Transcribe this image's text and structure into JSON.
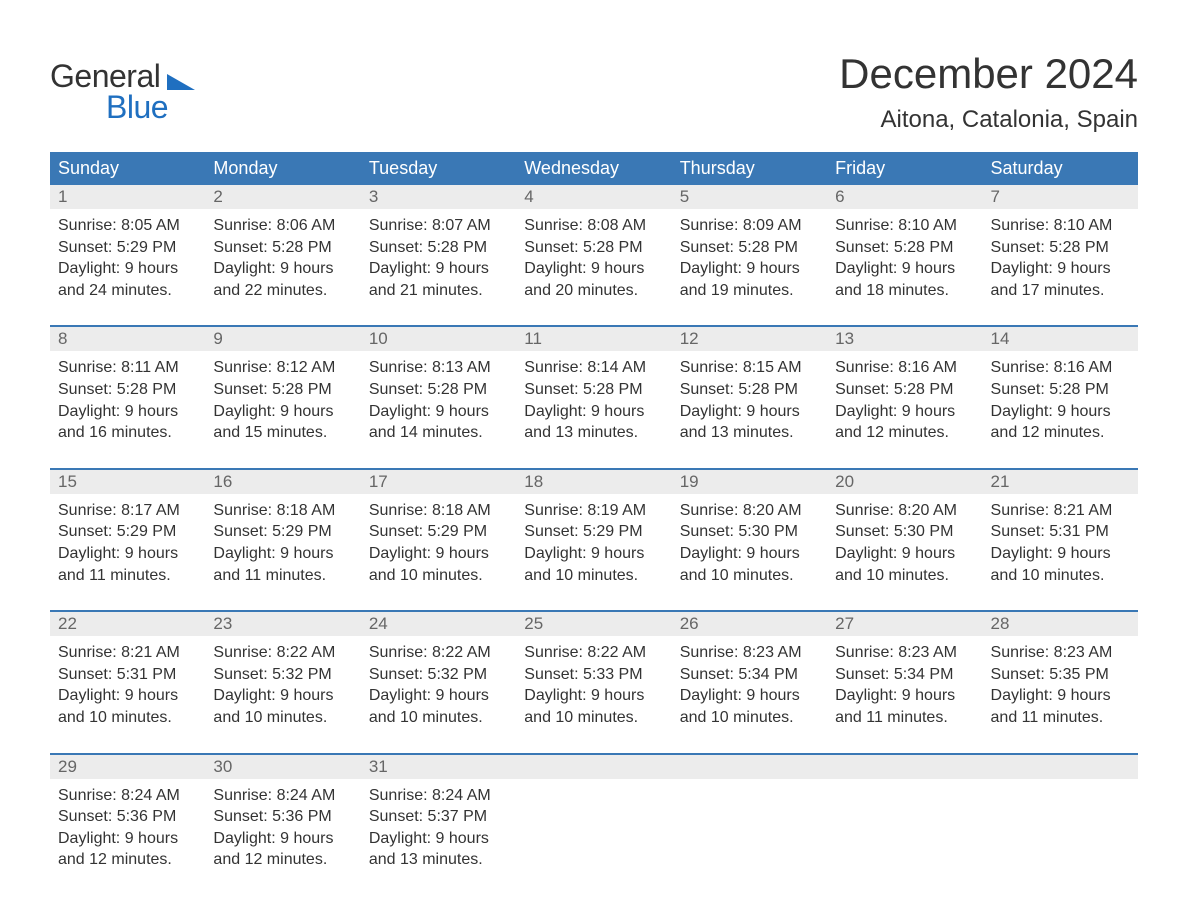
{
  "brand": {
    "general": "General",
    "blue": "Blue",
    "logo_color": "#1f6fc0"
  },
  "header": {
    "month": "December 2024",
    "location": "Aitona, Catalonia, Spain"
  },
  "styling": {
    "header_bg": "#3a78b5",
    "header_text": "#ffffff",
    "daynum_bg": "#ececec",
    "daynum_text": "#666666",
    "body_text": "#333333",
    "week_border": "#3a78b5",
    "page_bg": "#ffffff",
    "dayname_fontsize": 18,
    "body_fontsize": 16,
    "month_fontsize": 42,
    "location_fontsize": 24
  },
  "daynames": [
    "Sunday",
    "Monday",
    "Tuesday",
    "Wednesday",
    "Thursday",
    "Friday",
    "Saturday"
  ],
  "labels": {
    "sunrise": "Sunrise:",
    "sunset": "Sunset:",
    "daylight": "Daylight:"
  },
  "weeks": [
    [
      {
        "n": "1",
        "sunrise": "8:05 AM",
        "sunset": "5:29 PM",
        "daylight": "9 hours and 24 minutes."
      },
      {
        "n": "2",
        "sunrise": "8:06 AM",
        "sunset": "5:28 PM",
        "daylight": "9 hours and 22 minutes."
      },
      {
        "n": "3",
        "sunrise": "8:07 AM",
        "sunset": "5:28 PM",
        "daylight": "9 hours and 21 minutes."
      },
      {
        "n": "4",
        "sunrise": "8:08 AM",
        "sunset": "5:28 PM",
        "daylight": "9 hours and 20 minutes."
      },
      {
        "n": "5",
        "sunrise": "8:09 AM",
        "sunset": "5:28 PM",
        "daylight": "9 hours and 19 minutes."
      },
      {
        "n": "6",
        "sunrise": "8:10 AM",
        "sunset": "5:28 PM",
        "daylight": "9 hours and 18 minutes."
      },
      {
        "n": "7",
        "sunrise": "8:10 AM",
        "sunset": "5:28 PM",
        "daylight": "9 hours and 17 minutes."
      }
    ],
    [
      {
        "n": "8",
        "sunrise": "8:11 AM",
        "sunset": "5:28 PM",
        "daylight": "9 hours and 16 minutes."
      },
      {
        "n": "9",
        "sunrise": "8:12 AM",
        "sunset": "5:28 PM",
        "daylight": "9 hours and 15 minutes."
      },
      {
        "n": "10",
        "sunrise": "8:13 AM",
        "sunset": "5:28 PM",
        "daylight": "9 hours and 14 minutes."
      },
      {
        "n": "11",
        "sunrise": "8:14 AM",
        "sunset": "5:28 PM",
        "daylight": "9 hours and 13 minutes."
      },
      {
        "n": "12",
        "sunrise": "8:15 AM",
        "sunset": "5:28 PM",
        "daylight": "9 hours and 13 minutes."
      },
      {
        "n": "13",
        "sunrise": "8:16 AM",
        "sunset": "5:28 PM",
        "daylight": "9 hours and 12 minutes."
      },
      {
        "n": "14",
        "sunrise": "8:16 AM",
        "sunset": "5:28 PM",
        "daylight": "9 hours and 12 minutes."
      }
    ],
    [
      {
        "n": "15",
        "sunrise": "8:17 AM",
        "sunset": "5:29 PM",
        "daylight": "9 hours and 11 minutes."
      },
      {
        "n": "16",
        "sunrise": "8:18 AM",
        "sunset": "5:29 PM",
        "daylight": "9 hours and 11 minutes."
      },
      {
        "n": "17",
        "sunrise": "8:18 AM",
        "sunset": "5:29 PM",
        "daylight": "9 hours and 10 minutes."
      },
      {
        "n": "18",
        "sunrise": "8:19 AM",
        "sunset": "5:29 PM",
        "daylight": "9 hours and 10 minutes."
      },
      {
        "n": "19",
        "sunrise": "8:20 AM",
        "sunset": "5:30 PM",
        "daylight": "9 hours and 10 minutes."
      },
      {
        "n": "20",
        "sunrise": "8:20 AM",
        "sunset": "5:30 PM",
        "daylight": "9 hours and 10 minutes."
      },
      {
        "n": "21",
        "sunrise": "8:21 AM",
        "sunset": "5:31 PM",
        "daylight": "9 hours and 10 minutes."
      }
    ],
    [
      {
        "n": "22",
        "sunrise": "8:21 AM",
        "sunset": "5:31 PM",
        "daylight": "9 hours and 10 minutes."
      },
      {
        "n": "23",
        "sunrise": "8:22 AM",
        "sunset": "5:32 PM",
        "daylight": "9 hours and 10 minutes."
      },
      {
        "n": "24",
        "sunrise": "8:22 AM",
        "sunset": "5:32 PM",
        "daylight": "9 hours and 10 minutes."
      },
      {
        "n": "25",
        "sunrise": "8:22 AM",
        "sunset": "5:33 PM",
        "daylight": "9 hours and 10 minutes."
      },
      {
        "n": "26",
        "sunrise": "8:23 AM",
        "sunset": "5:34 PM",
        "daylight": "9 hours and 10 minutes."
      },
      {
        "n": "27",
        "sunrise": "8:23 AM",
        "sunset": "5:34 PM",
        "daylight": "9 hours and 11 minutes."
      },
      {
        "n": "28",
        "sunrise": "8:23 AM",
        "sunset": "5:35 PM",
        "daylight": "9 hours and 11 minutes."
      }
    ],
    [
      {
        "n": "29",
        "sunrise": "8:24 AM",
        "sunset": "5:36 PM",
        "daylight": "9 hours and 12 minutes."
      },
      {
        "n": "30",
        "sunrise": "8:24 AM",
        "sunset": "5:36 PM",
        "daylight": "9 hours and 12 minutes."
      },
      {
        "n": "31",
        "sunrise": "8:24 AM",
        "sunset": "5:37 PM",
        "daylight": "9 hours and 13 minutes."
      },
      null,
      null,
      null,
      null
    ]
  ]
}
